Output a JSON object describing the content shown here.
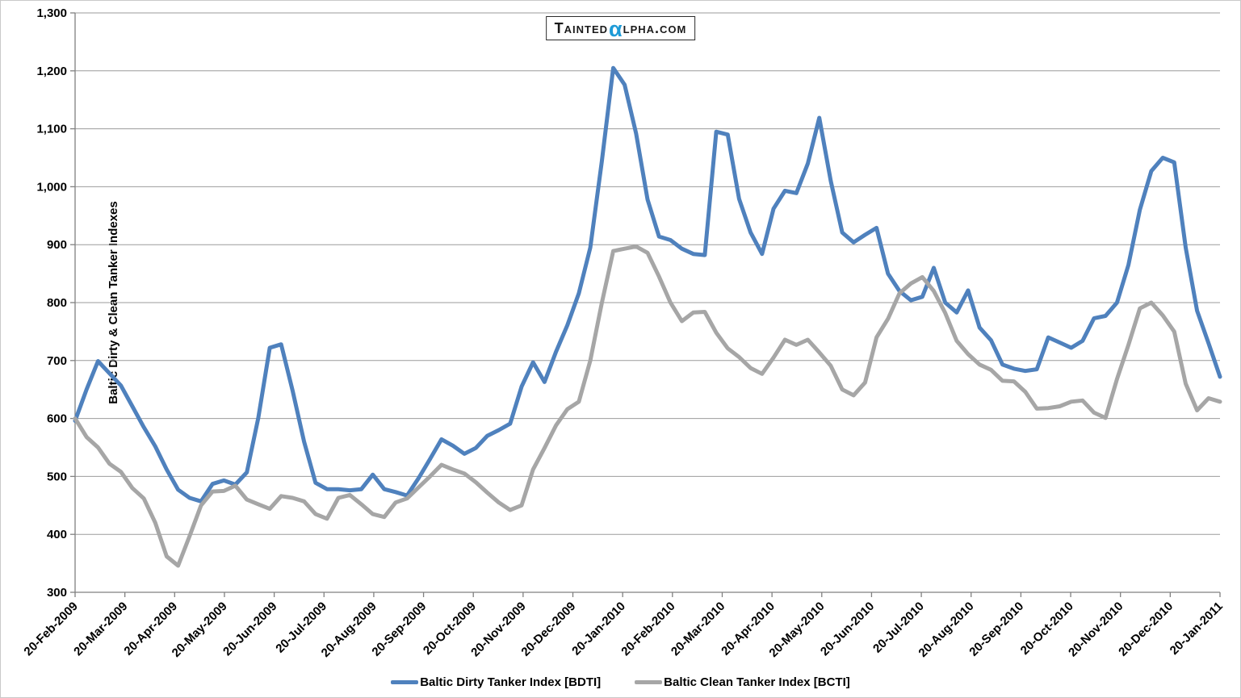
{
  "logo": {
    "prefix": "Tainted",
    "alpha": "α",
    "suffix": "lpha.com",
    "alpha_color": "#1E9BD7"
  },
  "y_axis": {
    "title": "Baltic Dirty & Clean Tanker Indexes",
    "tick_labels": [
      "300",
      "400",
      "500",
      "600",
      "700",
      "800",
      "900",
      "1,000",
      "1,100",
      "1,200",
      "1,300"
    ]
  },
  "x_axis": {
    "tick_labels": [
      "20-Feb-2009",
      "20-Mar-2009",
      "20-Apr-2009",
      "20-May-2009",
      "20-Jun-2009",
      "20-Jul-2009",
      "20-Aug-2009",
      "20-Sep-2009",
      "20-Oct-2009",
      "20-Nov-2009",
      "20-Dec-2009",
      "20-Jan-2010",
      "20-Feb-2010",
      "20-Mar-2010",
      "20-Apr-2010",
      "20-May-2010",
      "20-Jun-2010",
      "20-Jul-2010",
      "20-Aug-2010",
      "20-Sep-2010",
      "20-Oct-2010",
      "20-Nov-2010",
      "20-Dec-2010",
      "20-Jan-2011"
    ]
  },
  "legend": [
    {
      "label": "Baltic Dirty Tanker Index [BDTI]",
      "color": "#4F81BD"
    },
    {
      "label": "Baltic Clean Tanker Index [BCTI]",
      "color": "#A6A6A6"
    }
  ],
  "colors": {
    "gridline": "#9b9b9b",
    "axis": "#808080",
    "text": "#000000",
    "background": "#ffffff"
  },
  "chart_data": {
    "type": "line",
    "title": "",
    "xlabel": "",
    "ylabel": "Baltic Dirty & Clean Tanker Indexes",
    "x_start": "20-Feb-2009",
    "x_end": "20-Jan-2011",
    "sampling": "weekly (approx. values read from plot, ~101 points)",
    "x_tick_labels": [
      "20-Feb-2009",
      "20-Mar-2009",
      "20-Apr-2009",
      "20-May-2009",
      "20-Jun-2009",
      "20-Jul-2009",
      "20-Aug-2009",
      "20-Sep-2009",
      "20-Oct-2009",
      "20-Nov-2009",
      "20-Dec-2009",
      "20-Jan-2010",
      "20-Feb-2010",
      "20-Mar-2010",
      "20-Apr-2010",
      "20-May-2010",
      "20-Jun-2010",
      "20-Jul-2010",
      "20-Aug-2010",
      "20-Sep-2010",
      "20-Oct-2010",
      "20-Nov-2010",
      "20-Dec-2010",
      "20-Jan-2011"
    ],
    "ylim": [
      300,
      1300
    ],
    "y_tick_interval": 100,
    "grid": true,
    "legend_position": "bottom",
    "series": [
      {
        "name": "Baltic Dirty Tanker Index [BDTI]",
        "color": "#4F81BD",
        "values": [
          596,
          650,
          699,
          678,
          657,
          621,
          585,
          552,
          512,
          477,
          463,
          457,
          487,
          493,
          486,
          507,
          601,
          722,
          728,
          648,
          560,
          489,
          478,
          478,
          476,
          478,
          503,
          478,
          473,
          467,
          497,
          530,
          564,
          553,
          539,
          549,
          570,
          580,
          591,
          655,
          697,
          663,
          715,
          761,
          816,
          895,
          1043,
          1205,
          1176,
          1092,
          978,
          914,
          908,
          893,
          884,
          882,
          1095,
          1090,
          979,
          921,
          884,
          962,
          993,
          989,
          1040,
          1119,
          1010,
          921,
          904,
          917,
          929,
          850,
          820,
          804,
          810,
          860,
          800,
          783,
          821,
          757,
          735,
          693,
          686,
          682,
          685,
          740,
          731,
          722,
          734,
          773,
          777,
          800,
          865,
          960,
          1027,
          1050,
          1042,
          895,
          786,
          730,
          672
        ]
      },
      {
        "name": "Baltic Clean Tanker Index [BCTI]",
        "color": "#A6A6A6",
        "values": [
          600,
          568,
          550,
          522,
          508,
          480,
          462,
          420,
          362,
          346,
          397,
          450,
          474,
          475,
          484,
          460,
          452,
          444,
          466,
          463,
          457,
          435,
          427,
          463,
          468,
          452,
          435,
          430,
          455,
          462,
          481,
          500,
          520,
          512,
          505,
          490,
          472,
          455,
          442,
          450,
          512,
          549,
          588,
          616,
          629,
          700,
          799,
          889,
          893,
          897,
          886,
          845,
          800,
          768,
          783,
          784,
          748,
          721,
          706,
          687,
          677,
          705,
          736,
          727,
          736,
          714,
          691,
          650,
          640,
          662,
          740,
          772,
          816,
          833,
          844,
          820,
          782,
          734,
          711,
          693,
          684,
          665,
          664,
          646,
          617,
          618,
          621,
          629,
          631,
          610,
          601,
          668,
          727,
          790,
          800,
          778,
          750,
          660,
          614,
          635,
          629
        ]
      }
    ]
  }
}
